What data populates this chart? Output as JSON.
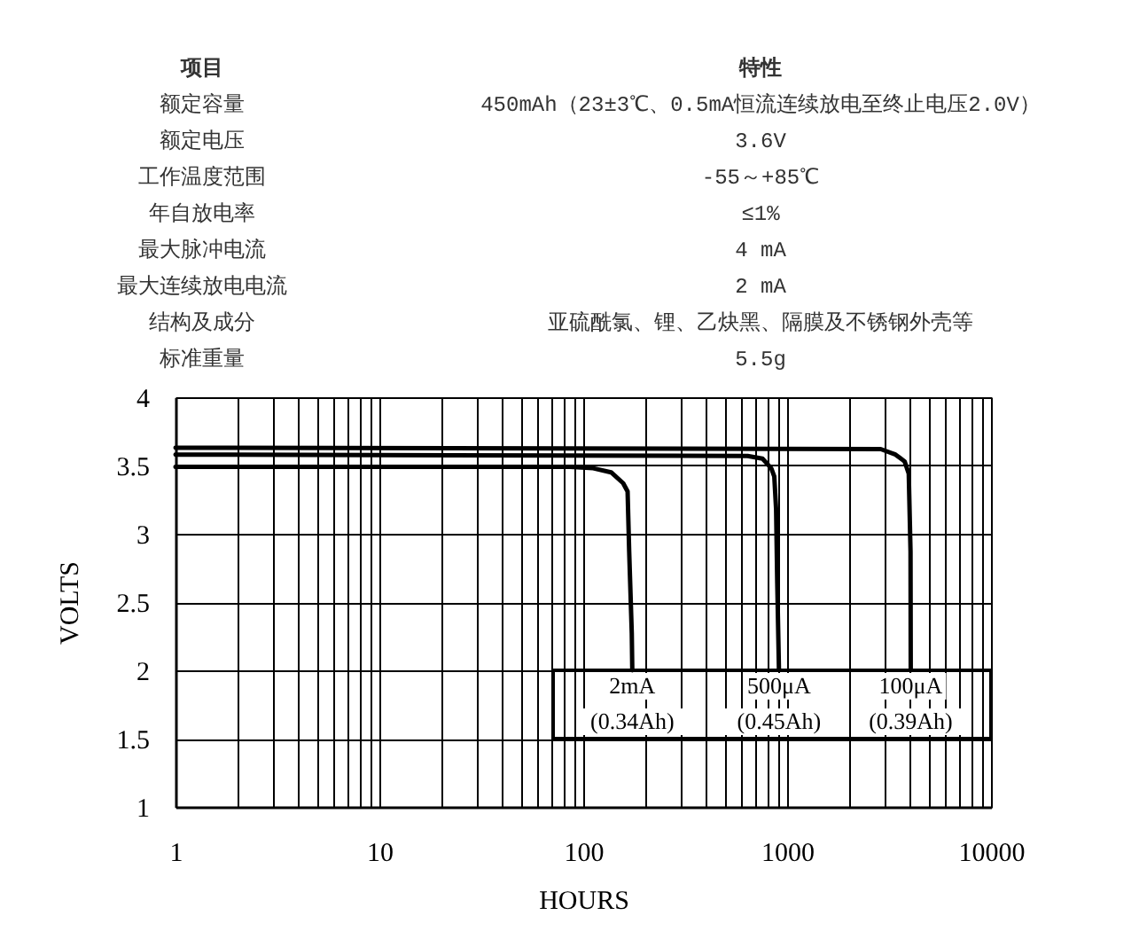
{
  "chart_data": [
    {
      "type": "other",
      "annotations": [
        "项目",
        "特性",
        "额定容量",
        "450mAh（23±3℃、0.5mA恒流连续放电至终止电压2.0V）",
        "额定电压",
        "3.6V",
        "工作温度范围",
        "-55～+85℃",
        "年自放电率",
        "≤1%",
        "最大脉冲电流",
        "4 mA",
        "最大连续放电电流",
        "2 mA",
        "结构及成分",
        "亚硫酰氯、锂、乙炔黑、隔膜及不锈钢外壳等",
        "标准重量",
        "5.5g"
      ]
    },
    {
      "type": "line",
      "xlabel": "HOURS",
      "ylabel": "VOLTS",
      "log": "x",
      "grid": true,
      "legend": "bottom right",
      "xlim": [
        1,
        10000
      ],
      "ylim": [
        1,
        4
      ],
      "xticks": [
        1,
        {
          "value": 2,
          "label": null
        },
        {
          "value": 3,
          "label": null
        },
        {
          "value": 4,
          "label": null
        },
        {
          "value": 5,
          "label": null
        },
        {
          "value": 6,
          "label": null
        },
        {
          "value": 7,
          "label": null
        },
        {
          "value": 8,
          "label": null
        },
        {
          "value": 9,
          "label": null
        },
        10,
        {
          "value": 20,
          "label": null
        },
        {
          "value": 30,
          "label": null
        },
        {
          "value": 40,
          "label": null
        },
        {
          "value": 50,
          "label": null
        },
        {
          "value": 60,
          "label": null
        },
        {
          "value": 70,
          "label": null
        },
        {
          "value": 80,
          "label": null
        },
        {
          "value": 90,
          "label": null
        },
        100,
        {
          "value": 200,
          "label": null
        },
        {
          "value": 300,
          "label": null
        },
        {
          "value": 400,
          "label": null
        },
        {
          "value": 500,
          "label": null
        },
        {
          "value": 600,
          "label": null
        },
        {
          "value": 700,
          "label": null
        },
        {
          "value": 800,
          "label": null
        },
        {
          "value": 900,
          "label": null
        },
        1000,
        {
          "value": 2000,
          "label": null
        },
        {
          "value": 3000,
          "label": null
        },
        {
          "value": 4000,
          "label": null
        },
        {
          "value": 5000,
          "label": null
        },
        {
          "value": 6000,
          "label": null
        },
        {
          "value": 7000,
          "label": null
        },
        {
          "value": 8000,
          "label": null
        },
        {
          "value": 9000,
          "label": null
        },
        10000
      ],
      "yticks": [
        1,
        1.5,
        2,
        2.5,
        3,
        3.5,
        4
      ],
      "series": [
        {
          "name": "2mA",
          "color": "#000000",
          "x": [
            1,
            86,
            112,
            137,
            157,
            165,
            168,
            173,
            174
          ],
          "values": [
            3.49,
            3.49,
            3.48,
            3.45,
            3.37,
            3.31,
            2.87,
            2.27,
            2.0
          ]
        },
        {
          "name": "500μA",
          "color": "#000000",
          "x": [
            1,
            640,
            757,
            836,
            865,
            883,
            894,
            912
          ],
          "values": [
            3.58,
            3.57,
            3.55,
            3.48,
            3.42,
            3.18,
            2.66,
            2.0
          ]
        },
        {
          "name": "100μA",
          "color": "#000000",
          "x": [
            1,
            2880,
            3400,
            3770,
            3950,
            4030,
            4040
          ],
          "values": [
            3.63,
            3.62,
            3.58,
            3.53,
            3.44,
            2.87,
            2.0
          ]
        }
      ],
      "annotations": [
        "(0.34Ah)",
        "(0.45Ah)",
        "(0.39Ah)"
      ]
    }
  ]
}
